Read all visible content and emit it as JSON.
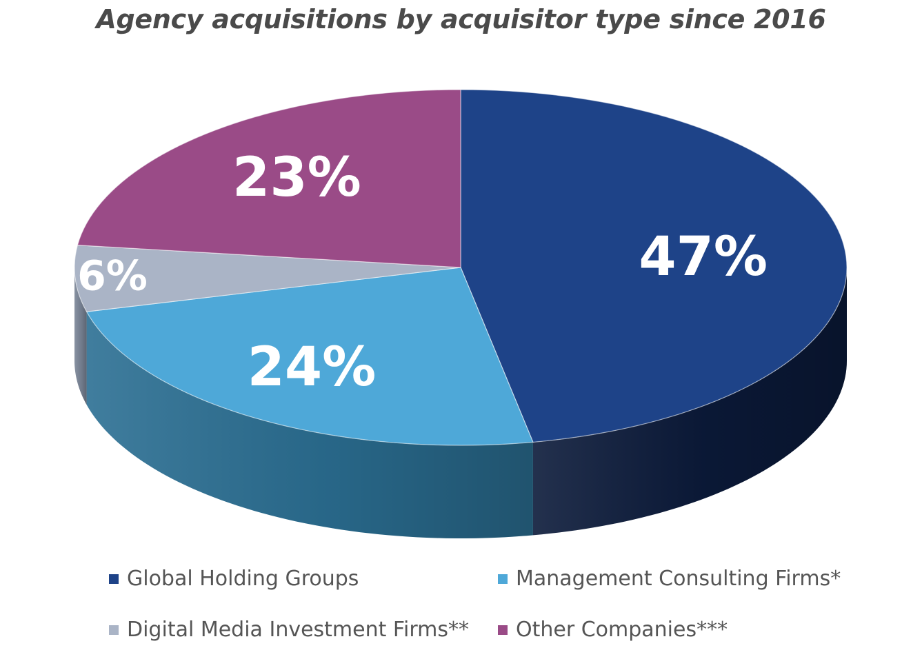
{
  "chart_data": {
    "type": "pie",
    "title": "Agency acquisitions by acquisitor type since 2016",
    "slices": [
      {
        "label": "Global Holding Groups",
        "value": 47,
        "display": "47%",
        "color": "#1e4388",
        "side_color": "#0b1a3a"
      },
      {
        "label": "Management Consulting Firms*",
        "value": 24,
        "display": "24%",
        "color": "#4ea8d8",
        "side_color": "#2b6f93"
      },
      {
        "label": "Digital Media Investment Firms**",
        "value": 6,
        "display": "6%",
        "color": "#aab4c6",
        "side_color": "#7c8799"
      },
      {
        "label": "Other Companies***",
        "value": 23,
        "display": "23%",
        "color": "#9a4b87",
        "side_color": "#6a2f5c"
      }
    ],
    "legend_position": "bottom"
  }
}
